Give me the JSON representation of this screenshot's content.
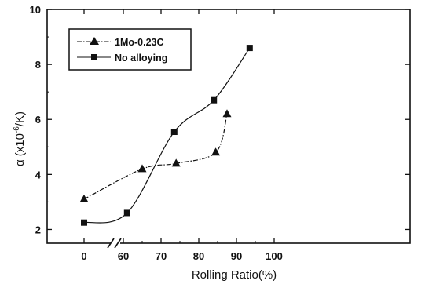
{
  "chart_data": {
    "type": "line",
    "xlabel": "Rolling Ratio(%)",
    "ylabel": "α (x10",
    "ylabel_exp": "-6",
    "ylabel_unit": "/K)",
    "x_ticks": [
      {
        "value": 0,
        "label": "0"
      },
      {
        "value": 60,
        "label": "60"
      },
      {
        "value": 70,
        "label": "70"
      },
      {
        "value": 80,
        "label": "80"
      },
      {
        "value": 90,
        "label": "90"
      },
      {
        "value": 100,
        "label": "100"
      }
    ],
    "x_axis_break": true,
    "y_ticks": [
      2,
      4,
      6,
      8,
      10
    ],
    "ylim": [
      1.5,
      10
    ],
    "grid": false,
    "legend_position": "top-left",
    "series": [
      {
        "name": "1Mo-0.23C",
        "marker": "triangle",
        "line_style": "dash-dot",
        "x": [
          0,
          65,
          74,
          84.5,
          87.5
        ],
        "y": [
          3.1,
          4.2,
          4.4,
          4.8,
          6.2
        ]
      },
      {
        "name": "No alloying",
        "marker": "square",
        "line_style": "solid",
        "x": [
          0,
          61,
          73.5,
          84,
          93.5
        ],
        "y": [
          2.25,
          2.6,
          5.55,
          6.7,
          8.6
        ]
      }
    ]
  }
}
